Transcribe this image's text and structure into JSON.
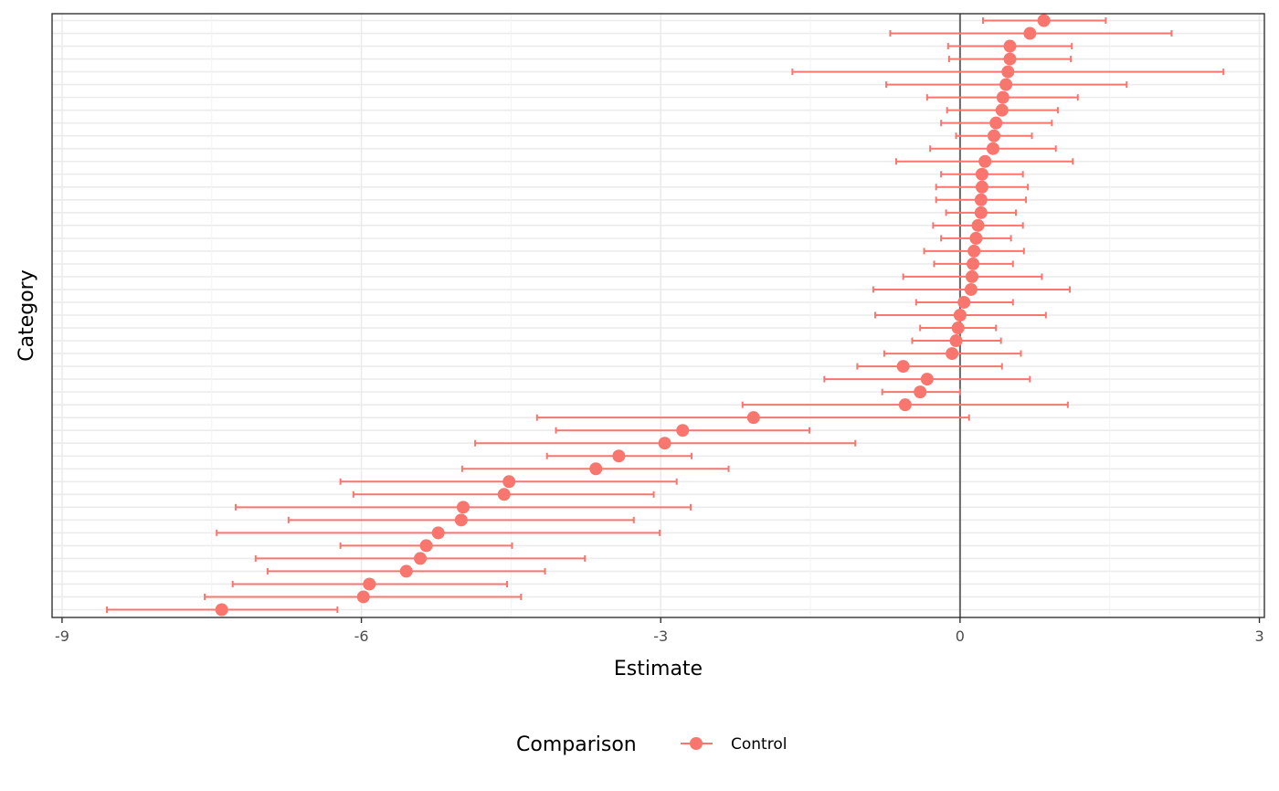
{
  "chart_data": {
    "type": "scatter",
    "subtype": "forest-plot-with-error-bars",
    "xlabel": "Estimate",
    "ylabel": "Category",
    "xlim": [
      -9.1,
      3.05
    ],
    "x_ticks": [
      -9,
      -6,
      -3,
      0,
      3
    ],
    "x_tick_labels": [
      "-9",
      "-6",
      "-3",
      "0",
      "3"
    ],
    "y_tick_labels_shown": false,
    "reference_line_x": 0,
    "grid": true,
    "legend": {
      "title": "Comparison",
      "position": "bottom",
      "entries": [
        "Control"
      ]
    },
    "series": [
      {
        "name": "Control",
        "color": "#F8766D",
        "points": [
          {
            "estimate": 0.84,
            "lower": 0.23,
            "upper": 1.46
          },
          {
            "estimate": 0.7,
            "lower": -0.7,
            "upper": 2.12
          },
          {
            "estimate": 0.5,
            "lower": -0.12,
            "upper": 1.12
          },
          {
            "estimate": 0.5,
            "lower": -0.11,
            "upper": 1.11
          },
          {
            "estimate": 0.48,
            "lower": -1.68,
            "upper": 2.64
          },
          {
            "estimate": 0.46,
            "lower": -0.74,
            "upper": 1.67
          },
          {
            "estimate": 0.43,
            "lower": -0.33,
            "upper": 1.18
          },
          {
            "estimate": 0.42,
            "lower": -0.13,
            "upper": 0.98
          },
          {
            "estimate": 0.36,
            "lower": -0.19,
            "upper": 0.92
          },
          {
            "estimate": 0.34,
            "lower": -0.04,
            "upper": 0.72
          },
          {
            "estimate": 0.33,
            "lower": -0.3,
            "upper": 0.96
          },
          {
            "estimate": 0.25,
            "lower": -0.64,
            "upper": 1.13
          },
          {
            "estimate": 0.22,
            "lower": -0.19,
            "upper": 0.63
          },
          {
            "estimate": 0.22,
            "lower": -0.24,
            "upper": 0.68
          },
          {
            "estimate": 0.21,
            "lower": -0.24,
            "upper": 0.66
          },
          {
            "estimate": 0.21,
            "lower": -0.14,
            "upper": 0.56
          },
          {
            "estimate": 0.18,
            "lower": -0.27,
            "upper": 0.63
          },
          {
            "estimate": 0.16,
            "lower": -0.19,
            "upper": 0.51
          },
          {
            "estimate": 0.14,
            "lower": -0.36,
            "upper": 0.64
          },
          {
            "estimate": 0.13,
            "lower": -0.26,
            "upper": 0.53
          },
          {
            "estimate": 0.12,
            "lower": -0.57,
            "upper": 0.82
          },
          {
            "estimate": 0.11,
            "lower": -0.87,
            "upper": 1.1
          },
          {
            "estimate": 0.04,
            "lower": -0.44,
            "upper": 0.53
          },
          {
            "estimate": 0.0,
            "lower": -0.85,
            "upper": 0.86
          },
          {
            "estimate": -0.02,
            "lower": -0.4,
            "upper": 0.36
          },
          {
            "estimate": -0.04,
            "lower": -0.48,
            "upper": 0.41
          },
          {
            "estimate": -0.08,
            "lower": -0.76,
            "upper": 0.61
          },
          {
            "estimate": -0.57,
            "lower": -1.03,
            "upper": 0.42
          },
          {
            "estimate": -0.33,
            "lower": -1.36,
            "upper": 0.7
          },
          {
            "estimate": -0.4,
            "lower": -0.78,
            "upper": 0.0
          },
          {
            "estimate": -0.55,
            "lower": -2.18,
            "upper": 1.08
          },
          {
            "estimate": -2.07,
            "lower": -4.24,
            "upper": 0.09
          },
          {
            "estimate": -2.78,
            "lower": -4.05,
            "upper": -1.51
          },
          {
            "estimate": -2.96,
            "lower": -4.86,
            "upper": -1.05
          },
          {
            "estimate": -3.42,
            "lower": -4.14,
            "upper": -2.69
          },
          {
            "estimate": -3.65,
            "lower": -4.99,
            "upper": -2.32
          },
          {
            "estimate": -4.52,
            "lower": -6.21,
            "upper": -2.84
          },
          {
            "estimate": -4.57,
            "lower": -6.08,
            "upper": -3.07
          },
          {
            "estimate": -4.98,
            "lower": -7.26,
            "upper": -2.7
          },
          {
            "estimate": -5.0,
            "lower": -6.73,
            "upper": -3.27
          },
          {
            "estimate": -5.23,
            "lower": -7.45,
            "upper": -3.01
          },
          {
            "estimate": -5.35,
            "lower": -6.21,
            "upper": -4.49
          },
          {
            "estimate": -5.41,
            "lower": -7.06,
            "upper": -3.76
          },
          {
            "estimate": -5.55,
            "lower": -6.94,
            "upper": -4.16
          },
          {
            "estimate": -5.92,
            "lower": -7.29,
            "upper": -4.54
          },
          {
            "estimate": -5.98,
            "lower": -7.57,
            "upper": -4.4
          },
          {
            "estimate": -7.4,
            "lower": -8.55,
            "upper": -6.24
          }
        ]
      }
    ]
  }
}
